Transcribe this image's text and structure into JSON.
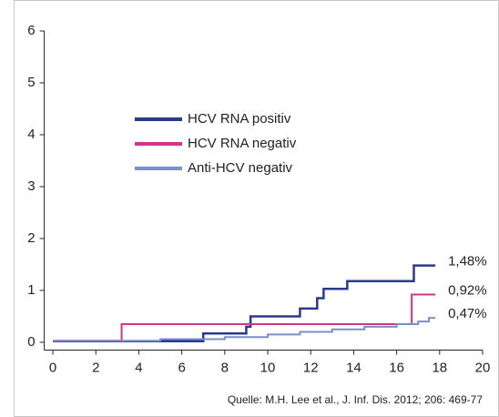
{
  "chart_data": {
    "type": "step",
    "xlim": [
      -0.4,
      20
    ],
    "ylim": [
      -0.15,
      6
    ],
    "xticks": [
      0,
      2,
      4,
      6,
      8,
      10,
      12,
      14,
      16,
      18,
      20
    ],
    "yticks": [
      0,
      1,
      2,
      3,
      4,
      5,
      6
    ],
    "legend": "upper left",
    "series": [
      {
        "name": "HCV RNA positiv",
        "color": "#2b3a8c",
        "x": [
          0,
          7,
          9,
          9.2,
          11.5,
          12.3,
          12.6,
          13.7,
          16.8,
          17.8
        ],
        "values": [
          0.02,
          0.17,
          0.3,
          0.5,
          0.65,
          0.85,
          1.03,
          1.18,
          1.48,
          1.48
        ],
        "end_label": "1,48%"
      },
      {
        "name": "HCV RNA negativ",
        "color": "#d6338a",
        "x": [
          0,
          3.2,
          16.7,
          17.8
        ],
        "values": [
          0.03,
          0.35,
          0.92,
          0.92
        ],
        "end_label": "0,92%"
      },
      {
        "name": "Anti-HCV negativ",
        "color": "#7d8fc9",
        "x": [
          0,
          5,
          8,
          10,
          11.5,
          13,
          14.5,
          16,
          17,
          17.5,
          17.8
        ],
        "values": [
          0.03,
          0.06,
          0.1,
          0.15,
          0.2,
          0.25,
          0.3,
          0.35,
          0.4,
          0.47,
          0.47
        ],
        "end_label": "0,47%"
      }
    ],
    "source": "Quelle: M.H. Lee et al., J. Inf. Dis. 2012; 206: 469-77"
  }
}
